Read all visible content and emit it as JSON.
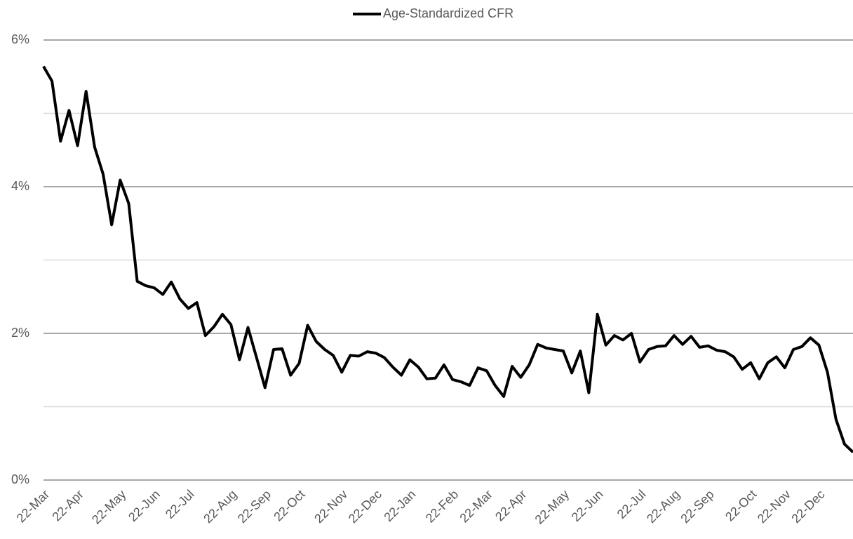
{
  "chart_data": {
    "type": "line",
    "legend": "top",
    "grid": true,
    "series": [
      {
        "name": "Age-Standardized CFR",
        "color": "#000000",
        "values": [
          5.64,
          5.44,
          4.62,
          5.04,
          4.56,
          5.3,
          4.54,
          4.17,
          3.48,
          4.09,
          3.77,
          2.71,
          2.65,
          2.62,
          2.53,
          2.7,
          2.47,
          2.34,
          2.42,
          1.97,
          2.09,
          2.26,
          2.12,
          1.64,
          2.08,
          1.67,
          1.26,
          1.78,
          1.79,
          1.43,
          1.59,
          2.11,
          1.89,
          1.78,
          1.7,
          1.47,
          1.7,
          1.69,
          1.75,
          1.73,
          1.67,
          1.54,
          1.43,
          1.64,
          1.54,
          1.38,
          1.39,
          1.57,
          1.37,
          1.34,
          1.29,
          1.53,
          1.49,
          1.29,
          1.14,
          1.55,
          1.4,
          1.57,
          1.85,
          1.8,
          1.78,
          1.76,
          1.46,
          1.76,
          1.19,
          2.26,
          1.84,
          1.97,
          1.91,
          2.0,
          1.61,
          1.78,
          1.82,
          1.83,
          1.97,
          1.85,
          1.96,
          1.81,
          1.83,
          1.77,
          1.75,
          1.68,
          1.51,
          1.6,
          1.38,
          1.6,
          1.68,
          1.53,
          1.78,
          1.82,
          1.94,
          1.84,
          1.47,
          0.83,
          0.49,
          0.38
        ]
      }
    ],
    "categories": [
      "22-Mar",
      null,
      null,
      null,
      "22-Apr",
      null,
      null,
      null,
      null,
      "22-May",
      null,
      null,
      null,
      "22-Jun",
      null,
      null,
      null,
      "22-Jul",
      null,
      null,
      null,
      null,
      "22-Aug",
      null,
      null,
      null,
      "22-Sep",
      null,
      null,
      null,
      "22-Oct",
      null,
      null,
      null,
      null,
      "22-Nov",
      null,
      null,
      null,
      "22-Dec",
      null,
      null,
      null,
      "22-Jan",
      null,
      null,
      null,
      null,
      "22-Feb",
      null,
      null,
      null,
      "22-Mar",
      null,
      null,
      null,
      "22-Apr",
      null,
      null,
      null,
      null,
      "22-May",
      null,
      null,
      null,
      "22-Jun",
      null,
      null,
      null,
      null,
      "22-Jul",
      null,
      null,
      null,
      "22-Aug",
      null,
      null,
      null,
      "22-Sep",
      null,
      null,
      null,
      null,
      "22-Oct",
      null,
      null,
      null,
      "22-Nov",
      null,
      null,
      null,
      "22-Dec",
      null,
      null,
      null,
      null
    ],
    "ylim": [
      0,
      6
    ],
    "yticks": [
      {
        "value": 0,
        "label": "0%"
      },
      {
        "value": 2,
        "label": "2%"
      },
      {
        "value": 4,
        "label": "4%"
      },
      {
        "value": 6,
        "label": "6%"
      }
    ],
    "minor_yticks": [
      1,
      3,
      5
    ]
  }
}
